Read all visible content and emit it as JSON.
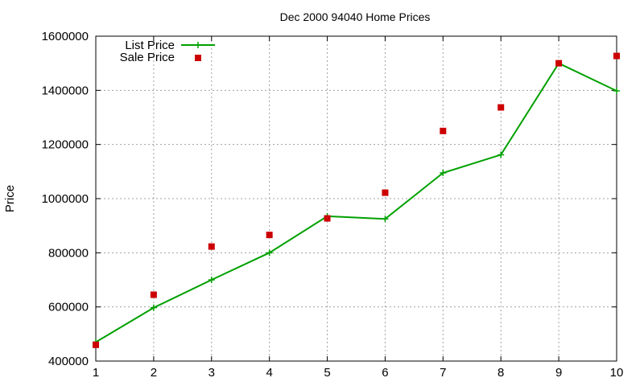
{
  "chart_data": {
    "type": "line",
    "title": "Dec 2000 94040 Home Prices",
    "xlabel": "",
    "ylabel": "Price",
    "x": [
      1,
      2,
      3,
      4,
      5,
      6,
      7,
      8,
      9,
      10
    ],
    "xticks": [
      "1",
      "2",
      "3",
      "4",
      "5",
      "6",
      "7",
      "8",
      "9",
      "10"
    ],
    "yticks": [
      "400000",
      "600000",
      "800000",
      "1000000",
      "1200000",
      "1400000",
      "1600000"
    ],
    "xlim": [
      1,
      10
    ],
    "ylim": [
      400000,
      1600000
    ],
    "grid": true,
    "legend_position": "top-left",
    "series": [
      {
        "name": "List Price",
        "style": "line+cross",
        "color": "#00a000",
        "values": [
          470000,
          597000,
          700000,
          800000,
          935000,
          925000,
          1095000,
          1162000,
          1500000,
          1398000
        ]
      },
      {
        "name": "Sale Price",
        "style": "square-markers",
        "color": "#cc0000",
        "values": [
          460000,
          645000,
          823000,
          866000,
          927000,
          1022000,
          1250000,
          1337000,
          1500000,
          1527000
        ]
      }
    ]
  }
}
